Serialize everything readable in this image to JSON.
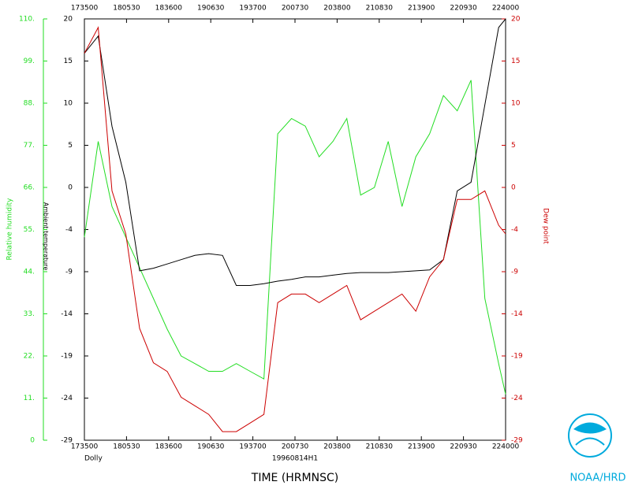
{
  "chart_data": {
    "type": "line",
    "x": [
      173500,
      174500,
      175500,
      180500,
      181500,
      182500,
      183500,
      184500,
      185500,
      190500,
      191500,
      192500,
      193500,
      194500,
      195500,
      200500,
      201500,
      202500,
      203500,
      204500,
      205500,
      210500,
      211500,
      212500,
      213500,
      214500,
      215500,
      220500,
      221500,
      222500,
      223500,
      224000
    ],
    "series": [
      {
        "name": "Relative humidity",
        "color": "#22dd22",
        "axis": "y3",
        "values": [
          53,
          78,
          61,
          53,
          45,
          37,
          29,
          22,
          20,
          18,
          18,
          20,
          18,
          16,
          80,
          84,
          82,
          74,
          78,
          84,
          64,
          66,
          78,
          61,
          74,
          80,
          90,
          86,
          94,
          37,
          20,
          12
        ]
      },
      {
        "name": "Ambient temperature",
        "color": "#000000",
        "axis": "y",
        "values": [
          16,
          18,
          7.5,
          1,
          -9.3,
          -9,
          -8.5,
          -8,
          -7.5,
          -7.3,
          -7.5,
          -11,
          -11,
          -10.8,
          -10.5,
          -10.3,
          -10,
          -10,
          -9.8,
          -9.6,
          -9.5,
          -9.5,
          -9.5,
          -9.4,
          -9.3,
          -9.2,
          -8,
          0,
          1,
          10,
          19,
          20
        ]
      },
      {
        "name": "Dew point",
        "color": "#cc0000",
        "axis": "y2",
        "values": [
          16,
          19,
          0,
          -5,
          -16,
          -20,
          -21,
          -24,
          -25,
          -26,
          -28,
          -28,
          -27,
          -26,
          -13,
          -12,
          -12,
          -13,
          -12,
          -11,
          -15,
          -14,
          -13,
          -12,
          -14,
          -10,
          -8,
          -1,
          -1,
          0,
          -4,
          -5
        ]
      }
    ],
    "xlim": [
      173500,
      224000
    ],
    "xticks": [
      173500,
      180530,
      183600,
      190630,
      193700,
      200730,
      203800,
      210830,
      213900,
      220930,
      224000
    ],
    "ylim": [
      -29,
      20
    ],
    "yticks": [
      -29,
      {
        "value": -24.1,
        "label": "-24"
      },
      {
        "value": -19.2,
        "label": "-19"
      },
      {
        "value": -14.3,
        "label": "-14"
      },
      {
        "value": -9.4,
        "label": "-9"
      },
      {
        "value": -4.5,
        "label": "-4"
      },
      {
        "value": 0.4,
        "label": "0"
      },
      {
        "value": 5.3,
        "label": "5"
      },
      {
        "value": 10.2,
        "label": "10"
      },
      {
        "value": 15.1,
        "label": "15"
      },
      20
    ],
    "y2lim": [
      -29,
      20
    ],
    "y2ticks": [
      -29,
      {
        "value": -24.1,
        "label": "-24"
      },
      {
        "value": -19.2,
        "label": "-19"
      },
      {
        "value": -14.3,
        "label": "-14"
      },
      {
        "value": -9.4,
        "label": "-9"
      },
      {
        "value": -4.5,
        "label": "-4"
      },
      {
        "value": 0.4,
        "label": "0"
      },
      {
        "value": 5.3,
        "label": "5"
      },
      {
        "value": 10.2,
        "label": "10"
      },
      {
        "value": 15.1,
        "label": "15"
      },
      20
    ],
    "y3lim": [
      0,
      110
    ],
    "y3ticks": [
      0,
      {
        "value": 11,
        "label": "11."
      },
      {
        "value": 22,
        "label": "22."
      },
      {
        "value": 33,
        "label": "33."
      },
      {
        "value": 44,
        "label": "44."
      },
      {
        "value": 55,
        "label": "55."
      },
      {
        "value": 66,
        "label": "66."
      },
      {
        "value": 77,
        "label": "77."
      },
      {
        "value": 88,
        "label": "88."
      },
      {
        "value": 99,
        "label": "99."
      },
      {
        "value": 110,
        "label": "110."
      }
    ],
    "storm": "Dolly",
    "flight": "19960814H1",
    "x_label": "TIME (HRMNSC)",
    "credit": "NOAA/HRD"
  }
}
